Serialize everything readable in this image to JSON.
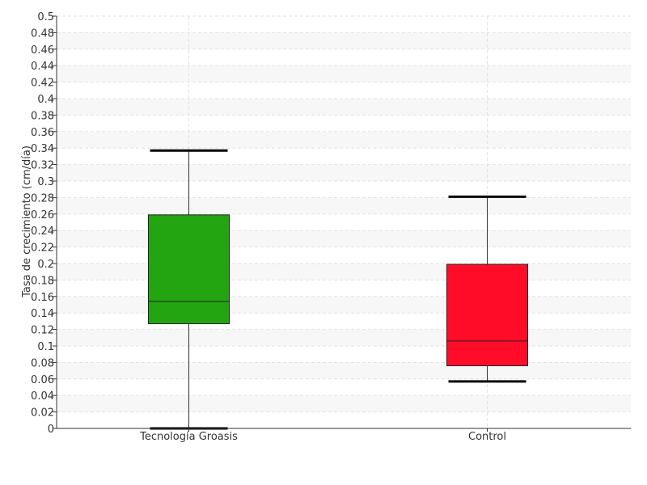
{
  "chart_data": {
    "type": "box",
    "ylabel": "Tasa de crecimiento (cm/día)",
    "xlabel": "",
    "ylim": [
      0,
      0.5
    ],
    "ytick_step": 0.02,
    "grid": true,
    "categories": [
      "Tecnología Groasis",
      "Control"
    ],
    "boxes": [
      {
        "name": "Tecnología Groasis",
        "whisker_low": 0.0,
        "q1": 0.127,
        "median": 0.154,
        "q3": 0.259,
        "whisker_high": 0.337,
        "color": "#22A510"
      },
      {
        "name": "Control",
        "whisker_low": 0.057,
        "q1": 0.076,
        "median": 0.106,
        "q3": 0.199,
        "whisker_high": 0.281,
        "color": "#FF0D28"
      }
    ]
  }
}
